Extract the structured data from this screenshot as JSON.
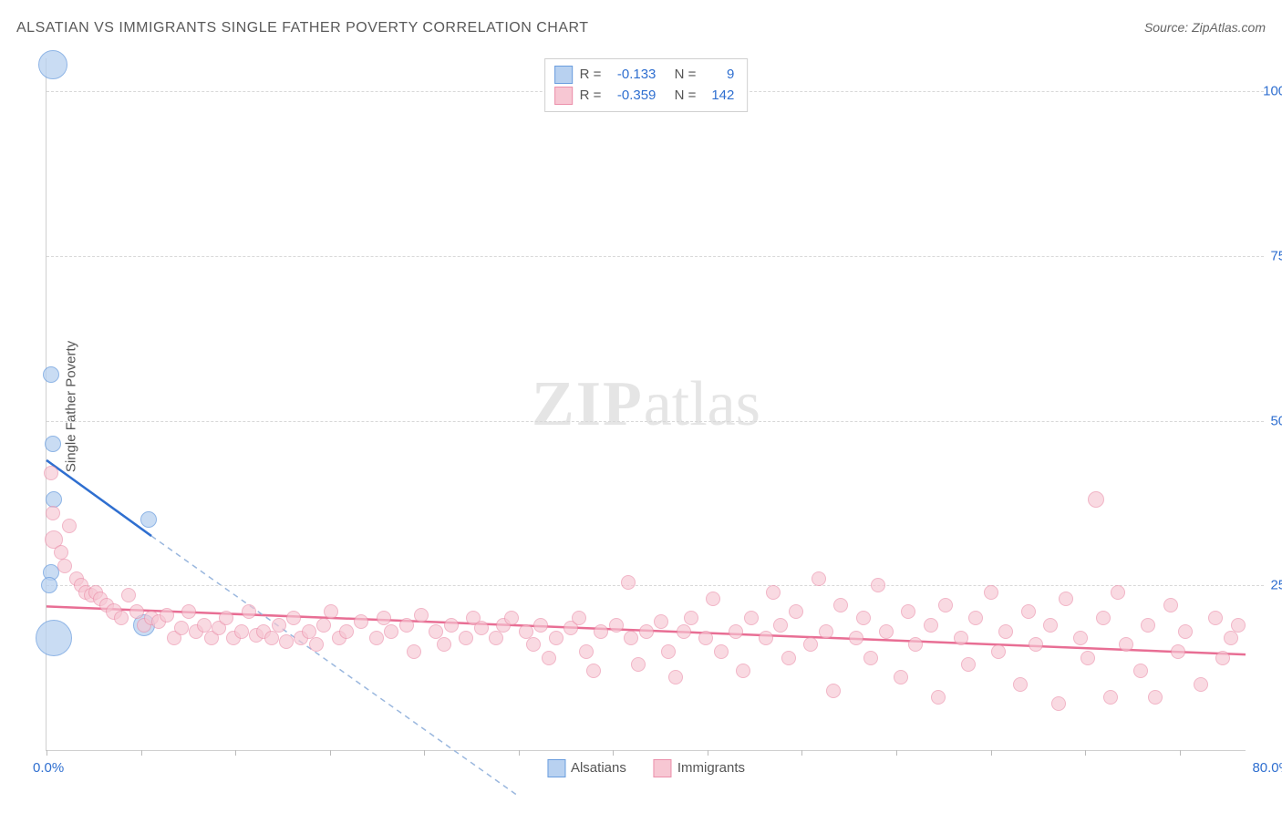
{
  "title": "ALSATIAN VS IMMIGRANTS SINGLE FATHER POVERTY CORRELATION CHART",
  "source_label": "Source:",
  "source_value": "ZipAtlas.com",
  "ylabel": "Single Father Poverty",
  "watermark_bold": "ZIP",
  "watermark_light": "atlas",
  "chart": {
    "type": "scatter",
    "xlim": [
      0,
      80
    ],
    "ylim": [
      0,
      105
    ],
    "x_tick_start": 0,
    "x_tick_end": 80,
    "x_tick_labels": [
      "0.0%",
      "80.0%"
    ],
    "x_minor_tick_step": 6.3,
    "y_tick_values": [
      25,
      50,
      75,
      100
    ],
    "y_tick_labels": [
      "25.0%",
      "50.0%",
      "75.0%",
      "100.0%"
    ],
    "grid_color": "#d8d8d8",
    "axis_color": "#cfcfcf",
    "background_color": "#ffffff",
    "label_color": "#2f6fd0",
    "series": [
      {
        "name": "Alsatians",
        "marker_fill": "#b8d1f0",
        "marker_stroke": "#6a9dde",
        "marker_opacity": 0.75,
        "line_color": "#2f6fd0",
        "line_width": 2.5,
        "dash_extend_color": "#9ab7de",
        "R": "-0.133",
        "N": "9",
        "reg_x1": 0,
        "reg_y1": 44,
        "reg_x2": 7,
        "reg_y2": 32.5,
        "dash_x2": 31.5,
        "dash_y2": -7,
        "points": [
          {
            "x": 0.4,
            "y": 104,
            "r": 16
          },
          {
            "x": 0.3,
            "y": 57,
            "r": 9
          },
          {
            "x": 0.4,
            "y": 46.5,
            "r": 9
          },
          {
            "x": 0.5,
            "y": 38,
            "r": 9
          },
          {
            "x": 0.3,
            "y": 27,
            "r": 9
          },
          {
            "x": 0.2,
            "y": 25,
            "r": 9
          },
          {
            "x": 0.5,
            "y": 17,
            "r": 20
          },
          {
            "x": 6.8,
            "y": 35,
            "r": 9
          },
          {
            "x": 6.5,
            "y": 19,
            "r": 12
          }
        ]
      },
      {
        "name": "Immigrants",
        "marker_fill": "#f7c7d3",
        "marker_stroke": "#eb8faa",
        "marker_opacity": 0.65,
        "line_color": "#e86e94",
        "line_width": 2.5,
        "R": "-0.359",
        "N": "142",
        "reg_x1": 0,
        "reg_y1": 21.8,
        "reg_x2": 80,
        "reg_y2": 14.5,
        "points": [
          {
            "x": 0.3,
            "y": 42,
            "r": 8
          },
          {
            "x": 0.4,
            "y": 36,
            "r": 8
          },
          {
            "x": 0.5,
            "y": 32,
            "r": 10
          },
          {
            "x": 1.0,
            "y": 30,
            "r": 8
          },
          {
            "x": 1.2,
            "y": 28,
            "r": 8
          },
          {
            "x": 1.5,
            "y": 34,
            "r": 8
          },
          {
            "x": 2.0,
            "y": 26,
            "r": 8
          },
          {
            "x": 2.3,
            "y": 25,
            "r": 8
          },
          {
            "x": 2.6,
            "y": 24,
            "r": 8
          },
          {
            "x": 3.0,
            "y": 23.5,
            "r": 8
          },
          {
            "x": 3.3,
            "y": 24,
            "r": 8
          },
          {
            "x": 3.6,
            "y": 23,
            "r": 8
          },
          {
            "x": 4.0,
            "y": 22,
            "r": 8
          },
          {
            "x": 4.5,
            "y": 21,
            "r": 9
          },
          {
            "x": 5,
            "y": 20,
            "r": 8
          },
          {
            "x": 5.5,
            "y": 23.5,
            "r": 8
          },
          {
            "x": 6,
            "y": 21,
            "r": 8
          },
          {
            "x": 6.5,
            "y": 19,
            "r": 8
          },
          {
            "x": 7,
            "y": 20,
            "r": 8
          },
          {
            "x": 7.5,
            "y": 19.5,
            "r": 8
          },
          {
            "x": 8,
            "y": 20.5,
            "r": 8
          },
          {
            "x": 8.5,
            "y": 17,
            "r": 8
          },
          {
            "x": 9,
            "y": 18.5,
            "r": 8
          },
          {
            "x": 9.5,
            "y": 21,
            "r": 8
          },
          {
            "x": 10,
            "y": 18,
            "r": 8
          },
          {
            "x": 10.5,
            "y": 19,
            "r": 8
          },
          {
            "x": 11,
            "y": 17,
            "r": 8
          },
          {
            "x": 11.5,
            "y": 18.5,
            "r": 8
          },
          {
            "x": 12,
            "y": 20,
            "r": 8
          },
          {
            "x": 12.5,
            "y": 17,
            "r": 8
          },
          {
            "x": 13,
            "y": 18,
            "r": 8
          },
          {
            "x": 13.5,
            "y": 21,
            "r": 8
          },
          {
            "x": 14,
            "y": 17.5,
            "r": 8
          },
          {
            "x": 14.5,
            "y": 18,
            "r": 8
          },
          {
            "x": 15,
            "y": 17,
            "r": 8
          },
          {
            "x": 15.5,
            "y": 19,
            "r": 8
          },
          {
            "x": 16,
            "y": 16.5,
            "r": 8
          },
          {
            "x": 16.5,
            "y": 20,
            "r": 8
          },
          {
            "x": 17,
            "y": 17,
            "r": 8
          },
          {
            "x": 17.5,
            "y": 18,
            "r": 8
          },
          {
            "x": 18,
            "y": 16,
            "r": 8
          },
          {
            "x": 18.5,
            "y": 19,
            "r": 8
          },
          {
            "x": 19,
            "y": 21,
            "r": 8
          },
          {
            "x": 19.5,
            "y": 17,
            "r": 8
          },
          {
            "x": 20,
            "y": 18,
            "r": 8
          },
          {
            "x": 21,
            "y": 19.5,
            "r": 8
          },
          {
            "x": 22,
            "y": 17,
            "r": 8
          },
          {
            "x": 22.5,
            "y": 20,
            "r": 8
          },
          {
            "x": 23,
            "y": 18,
            "r": 8
          },
          {
            "x": 24,
            "y": 19,
            "r": 8
          },
          {
            "x": 24.5,
            "y": 15,
            "r": 8
          },
          {
            "x": 25,
            "y": 20.5,
            "r": 8
          },
          {
            "x": 26,
            "y": 18,
            "r": 8
          },
          {
            "x": 26.5,
            "y": 16,
            "r": 8
          },
          {
            "x": 27,
            "y": 19,
            "r": 8
          },
          {
            "x": 28,
            "y": 17,
            "r": 8
          },
          {
            "x": 28.5,
            "y": 20,
            "r": 8
          },
          {
            "x": 29,
            "y": 18.5,
            "r": 8
          },
          {
            "x": 30,
            "y": 17,
            "r": 8
          },
          {
            "x": 30.5,
            "y": 19,
            "r": 8
          },
          {
            "x": 31,
            "y": 20,
            "r": 8
          },
          {
            "x": 32,
            "y": 18,
            "r": 8
          },
          {
            "x": 32.5,
            "y": 16,
            "r": 8
          },
          {
            "x": 33,
            "y": 19,
            "r": 8
          },
          {
            "x": 33.5,
            "y": 14,
            "r": 8
          },
          {
            "x": 34,
            "y": 17,
            "r": 8
          },
          {
            "x": 35,
            "y": 18.5,
            "r": 8
          },
          {
            "x": 35.5,
            "y": 20,
            "r": 8
          },
          {
            "x": 36,
            "y": 15,
            "r": 8
          },
          {
            "x": 36.5,
            "y": 12,
            "r": 8
          },
          {
            "x": 37,
            "y": 18,
            "r": 8
          },
          {
            "x": 38,
            "y": 19,
            "r": 8
          },
          {
            "x": 38.8,
            "y": 25.5,
            "r": 8
          },
          {
            "x": 39,
            "y": 17,
            "r": 8
          },
          {
            "x": 39.5,
            "y": 13,
            "r": 8
          },
          {
            "x": 40,
            "y": 18,
            "r": 8
          },
          {
            "x": 41,
            "y": 19.5,
            "r": 8
          },
          {
            "x": 41.5,
            "y": 15,
            "r": 8
          },
          {
            "x": 42,
            "y": 11,
            "r": 8
          },
          {
            "x": 42.5,
            "y": 18,
            "r": 8
          },
          {
            "x": 43,
            "y": 20,
            "r": 8
          },
          {
            "x": 44,
            "y": 17,
            "r": 8
          },
          {
            "x": 44.5,
            "y": 23,
            "r": 8
          },
          {
            "x": 45,
            "y": 15,
            "r": 8
          },
          {
            "x": 46,
            "y": 18,
            "r": 8
          },
          {
            "x": 46.5,
            "y": 12,
            "r": 8
          },
          {
            "x": 47,
            "y": 20,
            "r": 8
          },
          {
            "x": 48,
            "y": 17,
            "r": 8
          },
          {
            "x": 48.5,
            "y": 24,
            "r": 8
          },
          {
            "x": 49,
            "y": 19,
            "r": 8
          },
          {
            "x": 49.5,
            "y": 14,
            "r": 8
          },
          {
            "x": 50,
            "y": 21,
            "r": 8
          },
          {
            "x": 51,
            "y": 16,
            "r": 8
          },
          {
            "x": 51.5,
            "y": 26,
            "r": 8
          },
          {
            "x": 52,
            "y": 18,
            "r": 8
          },
          {
            "x": 52.5,
            "y": 9,
            "r": 8
          },
          {
            "x": 53,
            "y": 22,
            "r": 8
          },
          {
            "x": 54,
            "y": 17,
            "r": 8
          },
          {
            "x": 54.5,
            "y": 20,
            "r": 8
          },
          {
            "x": 55,
            "y": 14,
            "r": 8
          },
          {
            "x": 55.5,
            "y": 25,
            "r": 8
          },
          {
            "x": 56,
            "y": 18,
            "r": 8
          },
          {
            "x": 57,
            "y": 11,
            "r": 8
          },
          {
            "x": 57.5,
            "y": 21,
            "r": 8
          },
          {
            "x": 58,
            "y": 16,
            "r": 8
          },
          {
            "x": 59,
            "y": 19,
            "r": 8
          },
          {
            "x": 59.5,
            "y": 8,
            "r": 8
          },
          {
            "x": 60,
            "y": 22,
            "r": 8
          },
          {
            "x": 61,
            "y": 17,
            "r": 8
          },
          {
            "x": 61.5,
            "y": 13,
            "r": 8
          },
          {
            "x": 62,
            "y": 20,
            "r": 8
          },
          {
            "x": 63,
            "y": 24,
            "r": 8
          },
          {
            "x": 63.5,
            "y": 15,
            "r": 8
          },
          {
            "x": 64,
            "y": 18,
            "r": 8
          },
          {
            "x": 65,
            "y": 10,
            "r": 8
          },
          {
            "x": 65.5,
            "y": 21,
            "r": 8
          },
          {
            "x": 66,
            "y": 16,
            "r": 8
          },
          {
            "x": 67,
            "y": 19,
            "r": 8
          },
          {
            "x": 67.5,
            "y": 7,
            "r": 8
          },
          {
            "x": 68,
            "y": 23,
            "r": 8
          },
          {
            "x": 69,
            "y": 17,
            "r": 8
          },
          {
            "x": 69.5,
            "y": 14,
            "r": 8
          },
          {
            "x": 70,
            "y": 38,
            "r": 9
          },
          {
            "x": 70.5,
            "y": 20,
            "r": 8
          },
          {
            "x": 71,
            "y": 8,
            "r": 8
          },
          {
            "x": 71.5,
            "y": 24,
            "r": 8
          },
          {
            "x": 72,
            "y": 16,
            "r": 8
          },
          {
            "x": 73,
            "y": 12,
            "r": 8
          },
          {
            "x": 73.5,
            "y": 19,
            "r": 8
          },
          {
            "x": 74,
            "y": 8,
            "r": 8
          },
          {
            "x": 75,
            "y": 22,
            "r": 8
          },
          {
            "x": 75.5,
            "y": 15,
            "r": 8
          },
          {
            "x": 76,
            "y": 18,
            "r": 8
          },
          {
            "x": 77,
            "y": 10,
            "r": 8
          },
          {
            "x": 78,
            "y": 20,
            "r": 8
          },
          {
            "x": 78.5,
            "y": 14,
            "r": 8
          },
          {
            "x": 79,
            "y": 17,
            "r": 8
          },
          {
            "x": 79.5,
            "y": 19,
            "r": 8
          }
        ]
      }
    ]
  },
  "legend_top": {
    "r_label": "R =",
    "n_label": "N ="
  },
  "legend_bottom": [
    "Alsatians",
    "Immigrants"
  ]
}
